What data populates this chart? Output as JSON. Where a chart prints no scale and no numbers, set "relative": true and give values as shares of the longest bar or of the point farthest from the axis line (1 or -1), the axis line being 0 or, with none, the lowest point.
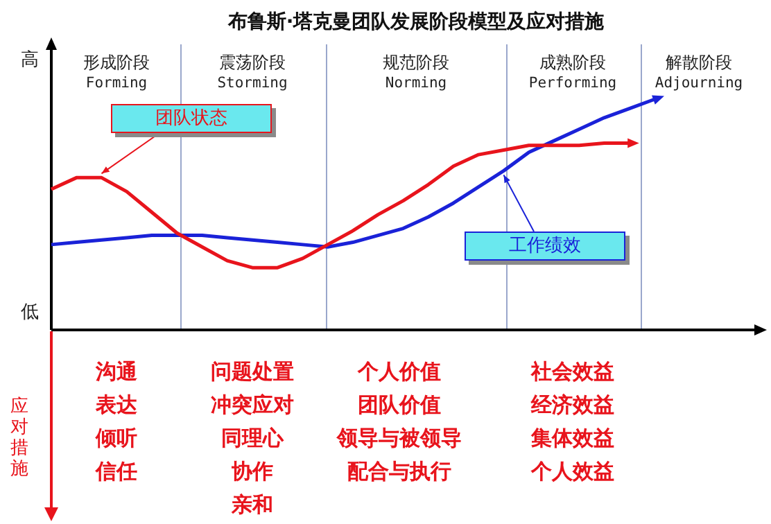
{
  "chart_data": {
    "type": "line",
    "title": "布鲁斯·塔克曼团队发展阶段模型及应对措施",
    "relative": true,
    "marker": "none",
    "categories": [
      null,
      null,
      null,
      null,
      null,
      null,
      null,
      null,
      null,
      null,
      null,
      null,
      null,
      null,
      null,
      null,
      null,
      null,
      null,
      null,
      null,
      null,
      null,
      null,
      null
    ],
    "series": [
      {
        "name": "团队状态",
        "color": "#e8141c",
        "values": [
          0.61,
          0.66,
          0.66,
          0.6,
          0.51,
          0.42,
          0.36,
          0.3,
          0.27,
          0.27,
          0.31,
          0.37,
          0.43,
          0.5,
          0.56,
          0.63,
          0.71,
          0.76,
          0.78,
          0.8,
          0.8,
          0.8,
          0.81,
          0.81,
          null
        ]
      },
      {
        "name": "工作绩效",
        "color": "#1a22d8",
        "values": [
          0.37,
          0.38,
          0.39,
          0.4,
          0.41,
          0.41,
          0.41,
          0.4,
          0.39,
          0.38,
          0.37,
          0.36,
          0.38,
          0.41,
          0.44,
          0.49,
          0.55,
          0.62,
          0.69,
          0.77,
          0.82,
          0.87,
          0.92,
          0.96,
          1.0
        ]
      }
    ],
    "annotations": [
      "高",
      "低",
      "形成阶段",
      "Forming",
      "震荡阶段",
      "Storming",
      "规范阶段",
      "Norming",
      "成熟阶段",
      "Performing",
      "解散阶段",
      "Adjourning",
      "应对措施",
      "沟通",
      "表达",
      "倾听",
      "信任",
      "问题处置",
      "冲突应对",
      "同理心",
      "协作",
      "亲和",
      "个人价值",
      "团队价值",
      "领导与被领导",
      "配合与执行",
      "社会效益",
      "经济效益",
      "集体效益",
      "个人效益"
    ]
  }
}
